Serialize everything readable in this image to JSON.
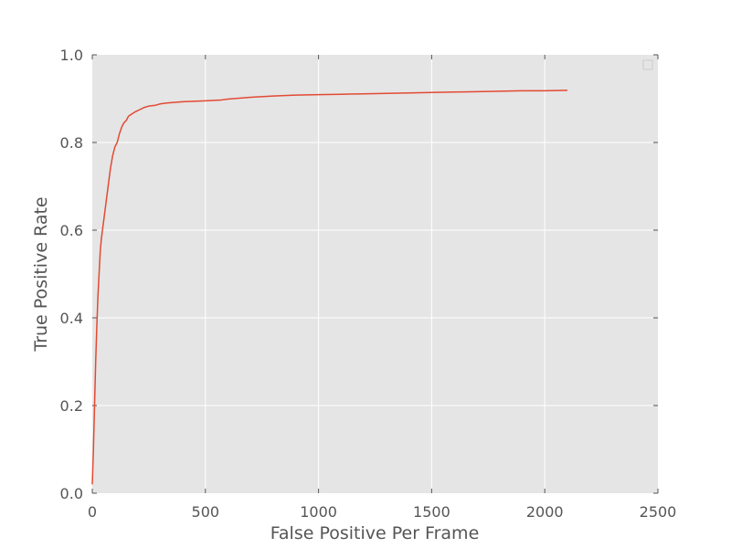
{
  "chart_data": {
    "type": "line",
    "title": "",
    "xlabel": "False Positive Per Frame",
    "ylabel": "True Positive Rate",
    "xlim": [
      0,
      2500
    ],
    "ylim": [
      0.0,
      1.0
    ],
    "xticks": [
      0,
      500,
      1000,
      1500,
      2000,
      2500
    ],
    "xtick_labels": [
      "0",
      "500",
      "1000",
      "1500",
      "2000",
      "2500"
    ],
    "yticks": [
      0.0,
      0.2,
      0.4,
      0.6,
      0.8,
      1.0
    ],
    "ytick_labels": [
      "0.0",
      "0.2",
      "0.4",
      "0.6",
      "0.8",
      "1.0"
    ],
    "grid": true,
    "legend": "top-right",
    "background_color": "#e5e5e5",
    "series": [
      {
        "color": "#e24a33",
        "x": [
          0,
          5,
          10,
          15,
          20,
          25,
          30,
          35,
          40,
          45,
          50,
          55,
          60,
          65,
          70,
          75,
          80,
          90,
          100,
          110,
          120,
          130,
          140,
          150,
          160,
          175,
          190,
          210,
          230,
          250,
          280,
          300,
          330,
          400,
          500,
          570,
          600,
          700,
          800,
          900,
          1000,
          1100,
          1200,
          1300,
          1400,
          1500,
          1600,
          1700,
          1800,
          1900,
          2000,
          2100
        ],
        "y": [
          0.02,
          0.1,
          0.2,
          0.3,
          0.38,
          0.45,
          0.5,
          0.55,
          0.58,
          0.6,
          0.62,
          0.64,
          0.66,
          0.68,
          0.7,
          0.72,
          0.74,
          0.77,
          0.79,
          0.8,
          0.82,
          0.835,
          0.845,
          0.85,
          0.86,
          0.865,
          0.87,
          0.875,
          0.88,
          0.883,
          0.885,
          0.888,
          0.89,
          0.893,
          0.895,
          0.897,
          0.899,
          0.903,
          0.906,
          0.908,
          0.909,
          0.91,
          0.911,
          0.912,
          0.913,
          0.914,
          0.915,
          0.916,
          0.917,
          0.918,
          0.918,
          0.919
        ]
      }
    ]
  }
}
